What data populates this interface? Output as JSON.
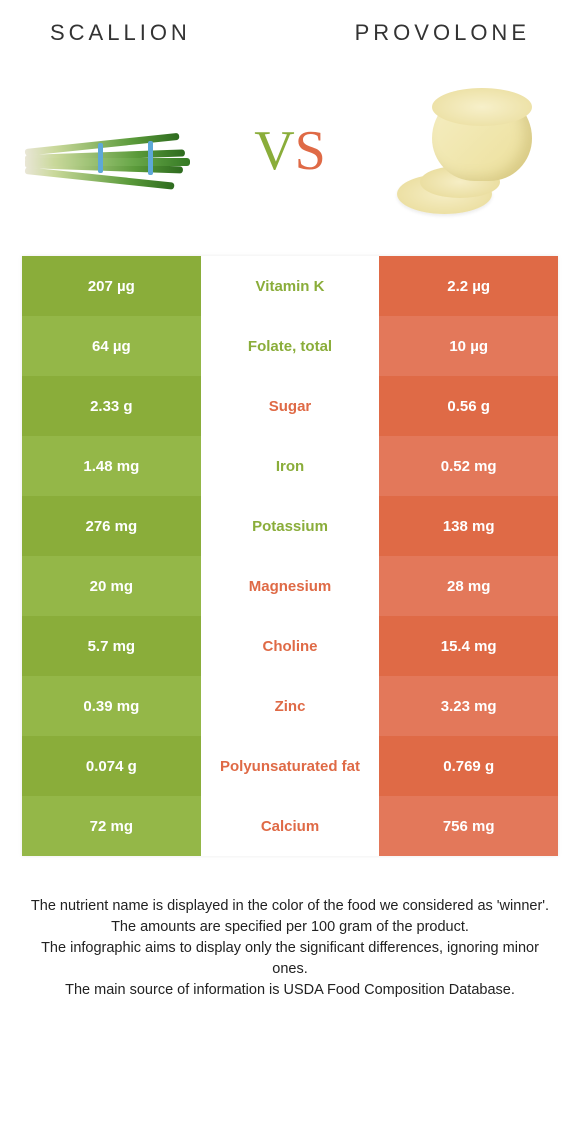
{
  "header": {
    "left": "SCALLION",
    "right": "PROVOLONE"
  },
  "vs": {
    "v": "V",
    "s": "S"
  },
  "colors": {
    "green": "#8aad3a",
    "orange": "#df6a46"
  },
  "rows": [
    {
      "left": "207 µg",
      "mid": "Vitamin K",
      "right": "2.2 µg",
      "winner": "green"
    },
    {
      "left": "64 µg",
      "mid": "Folate, total",
      "right": "10 µg",
      "winner": "green"
    },
    {
      "left": "2.33 g",
      "mid": "Sugar",
      "right": "0.56 g",
      "winner": "orange"
    },
    {
      "left": "1.48 mg",
      "mid": "Iron",
      "right": "0.52 mg",
      "winner": "green"
    },
    {
      "left": "276 mg",
      "mid": "Potassium",
      "right": "138 mg",
      "winner": "green"
    },
    {
      "left": "20 mg",
      "mid": "Magnesium",
      "right": "28 mg",
      "winner": "orange"
    },
    {
      "left": "5.7 mg",
      "mid": "Choline",
      "right": "15.4 mg",
      "winner": "orange"
    },
    {
      "left": "0.39 mg",
      "mid": "Zinc",
      "right": "3.23 mg",
      "winner": "orange"
    },
    {
      "left": "0.074 g",
      "mid": "Polyunsaturated fat",
      "right": "0.769 g",
      "winner": "orange"
    },
    {
      "left": "72 mg",
      "mid": "Calcium",
      "right": "756 mg",
      "winner": "orange"
    }
  ],
  "footer": {
    "l1": "The nutrient name is displayed in the color of the food we considered as 'winner'.",
    "l2": "The amounts are specified per 100 gram of the product.",
    "l3": "The infographic aims to display only the significant differences, ignoring minor ones.",
    "l4": "The main source of information is USDA Food Composition Database."
  }
}
